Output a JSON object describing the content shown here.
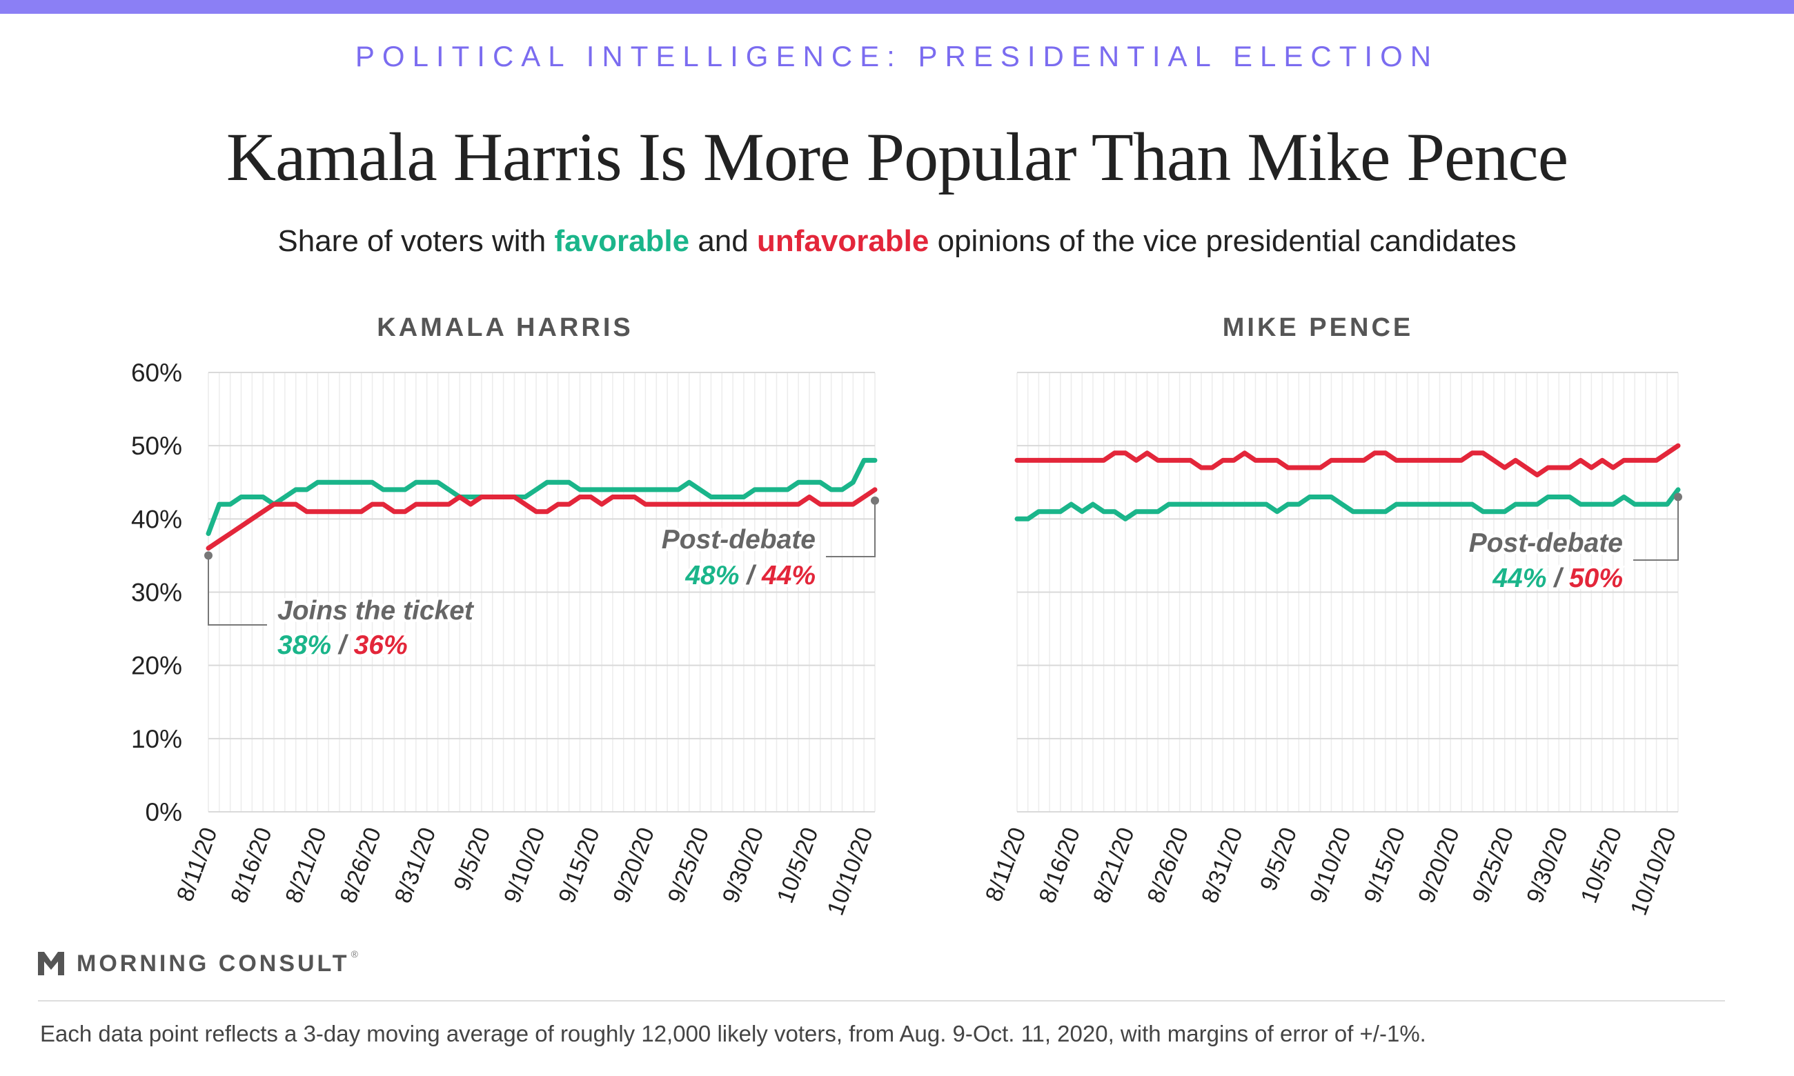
{
  "header": {
    "kicker": "POLITICAL INTELLIGENCE: PRESIDENTIAL ELECTION",
    "title": "Kamala Harris Is More Popular Than Mike Pence",
    "subtitle_pre": "Share of voters with ",
    "subtitle_fav": "favorable",
    "subtitle_mid": " and ",
    "subtitle_unfav": "unfavorable",
    "subtitle_post": " opinions of the vice presidential candidates"
  },
  "colors": {
    "favorable": "#1ab58a",
    "unfavorable": "#e3263a",
    "kicker": "#7b6cf0",
    "grid": "#e2e2e2",
    "topbar": "#8b7ff5"
  },
  "chart_data": [
    {
      "type": "line",
      "title": "KAMALA HARRIS",
      "x": [
        "8/11/20",
        "8/12/20",
        "8/13/20",
        "8/14/20",
        "8/15/20",
        "8/16/20",
        "8/17/20",
        "8/18/20",
        "8/19/20",
        "8/20/20",
        "8/21/20",
        "8/22/20",
        "8/23/20",
        "8/24/20",
        "8/25/20",
        "8/26/20",
        "8/27/20",
        "8/28/20",
        "8/29/20",
        "8/30/20",
        "8/31/20",
        "9/1/20",
        "9/2/20",
        "9/3/20",
        "9/4/20",
        "9/5/20",
        "9/6/20",
        "9/7/20",
        "9/8/20",
        "9/9/20",
        "9/10/20",
        "9/11/20",
        "9/12/20",
        "9/13/20",
        "9/14/20",
        "9/15/20",
        "9/16/20",
        "9/17/20",
        "9/18/20",
        "9/19/20",
        "9/20/20",
        "9/21/20",
        "9/22/20",
        "9/23/20",
        "9/24/20",
        "9/25/20",
        "9/26/20",
        "9/27/20",
        "9/28/20",
        "9/29/20",
        "9/30/20",
        "10/1/20",
        "10/2/20",
        "10/3/20",
        "10/4/20",
        "10/5/20",
        "10/6/20",
        "10/7/20",
        "10/8/20",
        "10/9/20",
        "10/10/20",
        "10/11/20"
      ],
      "x_tick_labels": [
        "8/11/20",
        "8/16/20",
        "8/21/20",
        "8/26/20",
        "8/31/20",
        "9/5/20",
        "9/10/20",
        "9/15/20",
        "9/20/20",
        "9/25/20",
        "9/30/20",
        "10/5/20",
        "10/10/20"
      ],
      "y_tick_labels": [
        "0%",
        "10%",
        "20%",
        "30%",
        "40%",
        "50%",
        "60%"
      ],
      "ylim": [
        0,
        60
      ],
      "grid": true,
      "series": [
        {
          "name": "favorable",
          "values": [
            38,
            42,
            42,
            43,
            43,
            43,
            42,
            43,
            44,
            44,
            45,
            45,
            45,
            45,
            45,
            45,
            44,
            44,
            44,
            45,
            45,
            45,
            44,
            43,
            43,
            43,
            43,
            43,
            43,
            43,
            44,
            45,
            45,
            45,
            44,
            44,
            44,
            44,
            44,
            44,
            44,
            44,
            44,
            44,
            45,
            44,
            43,
            43,
            43,
            43,
            44,
            44,
            44,
            44,
            45,
            45,
            45,
            44,
            44,
            45,
            48,
            48
          ]
        },
        {
          "name": "unfavorable",
          "values": [
            36,
            37,
            38,
            39,
            40,
            41,
            42,
            42,
            42,
            41,
            41,
            41,
            41,
            41,
            41,
            42,
            42,
            41,
            41,
            42,
            42,
            42,
            42,
            43,
            42,
            43,
            43,
            43,
            43,
            42,
            41,
            41,
            42,
            42,
            43,
            43,
            42,
            43,
            43,
            43,
            42,
            42,
            42,
            42,
            42,
            42,
            42,
            42,
            42,
            42,
            42,
            42,
            42,
            42,
            42,
            43,
            42,
            42,
            42,
            42,
            43,
            44
          ]
        }
      ],
      "annotations": [
        {
          "label": "Joins the ticket",
          "fav": "38%",
          "sep": " / ",
          "unfav": "36%"
        },
        {
          "label": "Post-debate",
          "fav": "48%",
          "sep": " / ",
          "unfav": "44%"
        }
      ]
    },
    {
      "type": "line",
      "title": "MIKE PENCE",
      "x": [
        "8/11/20",
        "8/12/20",
        "8/13/20",
        "8/14/20",
        "8/15/20",
        "8/16/20",
        "8/17/20",
        "8/18/20",
        "8/19/20",
        "8/20/20",
        "8/21/20",
        "8/22/20",
        "8/23/20",
        "8/24/20",
        "8/25/20",
        "8/26/20",
        "8/27/20",
        "8/28/20",
        "8/29/20",
        "8/30/20",
        "8/31/20",
        "9/1/20",
        "9/2/20",
        "9/3/20",
        "9/4/20",
        "9/5/20",
        "9/6/20",
        "9/7/20",
        "9/8/20",
        "9/9/20",
        "9/10/20",
        "9/11/20",
        "9/12/20",
        "9/13/20",
        "9/14/20",
        "9/15/20",
        "9/16/20",
        "9/17/20",
        "9/18/20",
        "9/19/20",
        "9/20/20",
        "9/21/20",
        "9/22/20",
        "9/23/20",
        "9/24/20",
        "9/25/20",
        "9/26/20",
        "9/27/20",
        "9/28/20",
        "9/29/20",
        "9/30/20",
        "10/1/20",
        "10/2/20",
        "10/3/20",
        "10/4/20",
        "10/5/20",
        "10/6/20",
        "10/7/20",
        "10/8/20",
        "10/9/20",
        "10/10/20",
        "10/11/20"
      ],
      "x_tick_labels": [
        "8/11/20",
        "8/16/20",
        "8/21/20",
        "8/26/20",
        "8/31/20",
        "9/5/20",
        "9/10/20",
        "9/15/20",
        "9/20/20",
        "9/25/20",
        "9/30/20",
        "10/5/20",
        "10/10/20"
      ],
      "y_tick_labels": [],
      "ylim": [
        0,
        60
      ],
      "grid": true,
      "series": [
        {
          "name": "favorable",
          "values": [
            40,
            40,
            41,
            41,
            41,
            42,
            41,
            42,
            41,
            41,
            40,
            41,
            41,
            41,
            42,
            42,
            42,
            42,
            42,
            42,
            42,
            42,
            42,
            42,
            41,
            42,
            42,
            43,
            43,
            43,
            42,
            41,
            41,
            41,
            41,
            42,
            42,
            42,
            42,
            42,
            42,
            42,
            42,
            41,
            41,
            41,
            42,
            42,
            42,
            43,
            43,
            43,
            42,
            42,
            42,
            42,
            43,
            42,
            42,
            42,
            42,
            44
          ]
        },
        {
          "name": "unfavorable",
          "values": [
            48,
            48,
            48,
            48,
            48,
            48,
            48,
            48,
            48,
            49,
            49,
            48,
            49,
            48,
            48,
            48,
            48,
            47,
            47,
            48,
            48,
            49,
            48,
            48,
            48,
            47,
            47,
            47,
            47,
            48,
            48,
            48,
            48,
            49,
            49,
            48,
            48,
            48,
            48,
            48,
            48,
            48,
            49,
            49,
            48,
            47,
            48,
            47,
            46,
            47,
            47,
            47,
            48,
            47,
            48,
            47,
            48,
            48,
            48,
            48,
            49,
            50
          ]
        }
      ],
      "annotations": [
        {
          "label": "Post-debate",
          "fav": "44%",
          "sep": " / ",
          "unfav": "50%"
        }
      ]
    }
  ],
  "logo": {
    "text": "MORNING CONSULT",
    "mark": "®"
  },
  "footnote": "Each data point reflects a 3-day moving average of roughly 12,000 likely voters, from Aug. 9-Oct. 11, 2020, with margins of error of +/-1%."
}
